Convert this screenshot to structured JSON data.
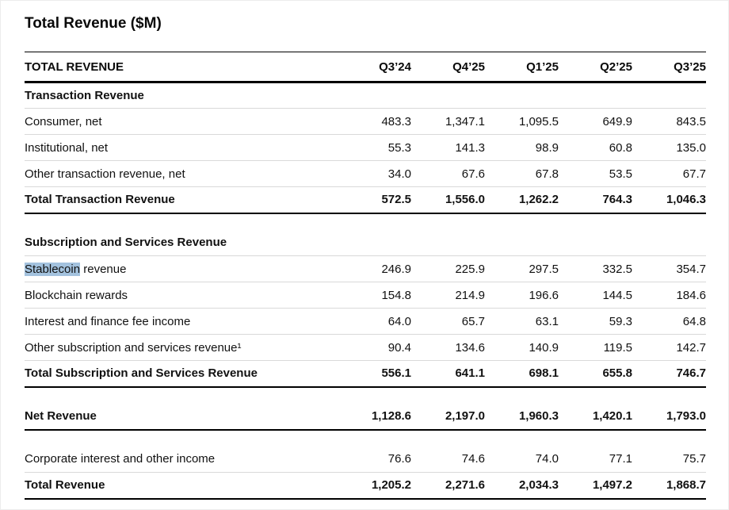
{
  "page": {
    "title": "Total Revenue ($M)"
  },
  "table": {
    "header": {
      "label": "TOTAL REVENUE",
      "columns": [
        "Q3’24",
        "Q4’25",
        "Q1’25",
        "Q2’25",
        "Q3’25"
      ]
    },
    "highlight_color": "#a3c2de",
    "rows": [
      {
        "type": "section",
        "label": "Transaction Revenue",
        "values": [
          "",
          "",
          "",
          "",
          ""
        ]
      },
      {
        "type": "data",
        "label": "Consumer, net",
        "values": [
          "483.3",
          "1,347.1",
          "1,095.5",
          "649.9",
          "843.5"
        ]
      },
      {
        "type": "data",
        "label": "Institutional, net",
        "values": [
          "55.3",
          "141.3",
          "98.9",
          "60.8",
          "135.0"
        ]
      },
      {
        "type": "data",
        "label": "Other transaction revenue, net",
        "values": [
          "34.0",
          "67.6",
          "67.8",
          "53.5",
          "67.7"
        ]
      },
      {
        "type": "total",
        "label": "Total Transaction Revenue",
        "values": [
          "572.5",
          "1,556.0",
          "1,262.2",
          "764.3",
          "1,046.3"
        ]
      },
      {
        "type": "spacer",
        "label": "",
        "values": [
          "",
          "",
          "",
          "",
          ""
        ]
      },
      {
        "type": "section",
        "label": "Subscription and Services Revenue",
        "values": [
          "",
          "",
          "",
          "",
          ""
        ]
      },
      {
        "type": "data",
        "label": "Stablecoin revenue",
        "highlight": "Stablecoin",
        "label_rest": " revenue",
        "values": [
          "246.9",
          "225.9",
          "297.5",
          "332.5",
          "354.7"
        ]
      },
      {
        "type": "data",
        "label": "Blockchain rewards",
        "values": [
          "154.8",
          "214.9",
          "196.6",
          "144.5",
          "184.6"
        ]
      },
      {
        "type": "data",
        "label": "Interest and finance fee income",
        "values": [
          "64.0",
          "65.7",
          "63.1",
          "59.3",
          "64.8"
        ]
      },
      {
        "type": "data",
        "label": "Other subscription and services revenue¹",
        "values": [
          "90.4",
          "134.6",
          "140.9",
          "119.5",
          "142.7"
        ]
      },
      {
        "type": "total",
        "label": "Total Subscription and Services Revenue",
        "values": [
          "556.1",
          "641.1",
          "698.1",
          "655.8",
          "746.7"
        ]
      },
      {
        "type": "spacer",
        "label": "",
        "values": [
          "",
          "",
          "",
          "",
          ""
        ]
      },
      {
        "type": "total",
        "label": "Net Revenue",
        "values": [
          "1,128.6",
          "2,197.0",
          "1,960.3",
          "1,420.1",
          "1,793.0"
        ]
      },
      {
        "type": "spacer",
        "label": "",
        "values": [
          "",
          "",
          "",
          "",
          ""
        ]
      },
      {
        "type": "data",
        "label": "Corporate interest and other income",
        "values": [
          "76.6",
          "74.6",
          "74.0",
          "77.1",
          "75.7"
        ]
      },
      {
        "type": "total",
        "label": "Total Revenue",
        "values": [
          "1,205.2",
          "2,271.6",
          "2,034.3",
          "1,497.2",
          "1,868.7"
        ]
      }
    ]
  }
}
